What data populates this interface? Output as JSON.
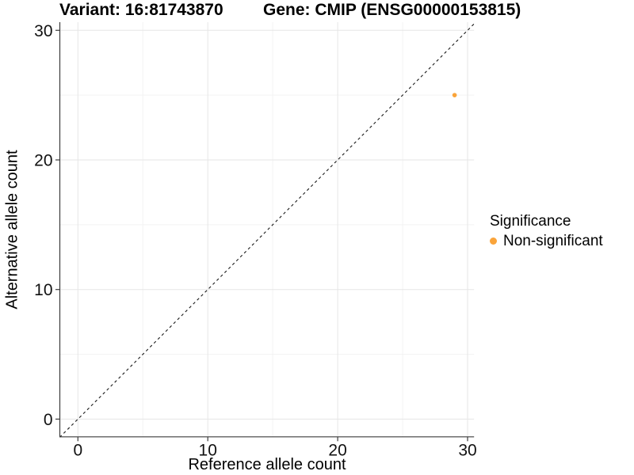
{
  "chart_data": {
    "type": "scatter",
    "titles": {
      "left": "Variant: 16:81743870",
      "right": "Gene: CMIP (ENSG00000153815)"
    },
    "xlabel": "Reference allele count",
    "ylabel": "Alternative allele count",
    "x_ticks": [
      0,
      10,
      20,
      30
    ],
    "y_ticks": [
      0,
      10,
      20,
      30
    ],
    "x_minor_ticks": [
      5,
      15,
      25
    ],
    "y_minor_ticks": [
      5,
      15,
      25
    ],
    "xlim": [
      -1.4,
      30.5
    ],
    "ylim": [
      -1.4,
      30.5
    ],
    "grid": true,
    "reference_line": {
      "type": "identity y=x",
      "style": "dashed",
      "color": "#1a1a1a"
    },
    "series": [
      {
        "name": "Non-significant",
        "color": "#FAA43A",
        "points": [
          {
            "x": 29,
            "y": 25
          }
        ]
      }
    ],
    "legend": {
      "position": "right",
      "title": "Significance",
      "items": [
        {
          "label": "Non-significant",
          "color": "#FAA43A"
        }
      ]
    },
    "colors": {
      "axis": "#3c3c3c",
      "grid_major": "#e6e6e6",
      "grid_minor": "#f3f3f3",
      "background": "#ffffff"
    }
  }
}
